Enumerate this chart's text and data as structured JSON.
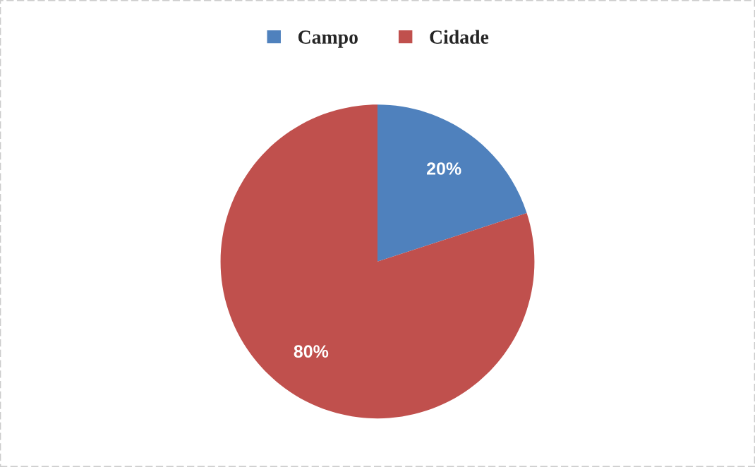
{
  "chart_data": {
    "type": "pie",
    "categories": [
      "Campo",
      "Cidade"
    ],
    "values": [
      20,
      80
    ],
    "colors": [
      "#4f81bd",
      "#c0504d"
    ],
    "value_labels": [
      "20%",
      "80%"
    ],
    "legend": "top"
  }
}
